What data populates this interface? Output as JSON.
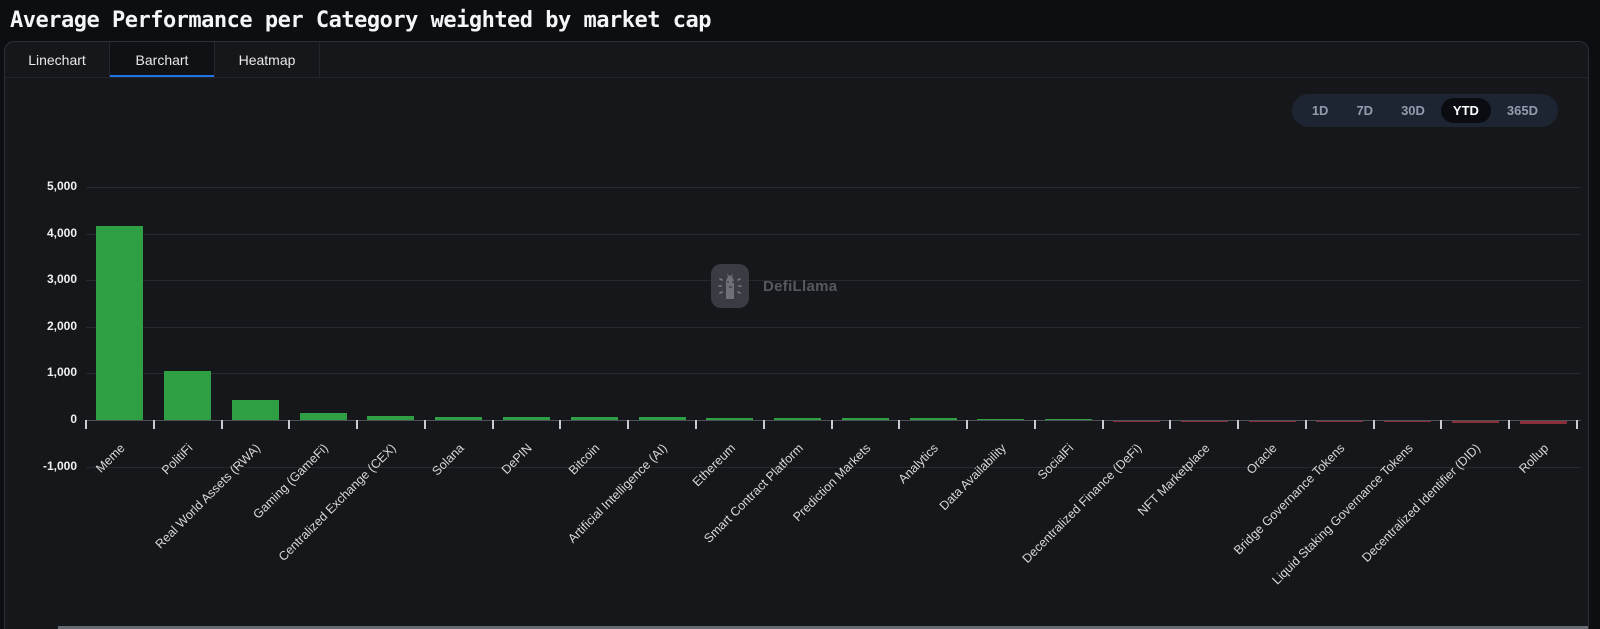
{
  "header": {
    "title": "Average Performance per Category weighted by market cap"
  },
  "tabs": [
    {
      "label": "Linechart",
      "active": false
    },
    {
      "label": "Barchart",
      "active": true
    },
    {
      "label": "Heatmap",
      "active": false
    }
  ],
  "time_ranges": [
    {
      "label": "1D",
      "active": false
    },
    {
      "label": "7D",
      "active": false
    },
    {
      "label": "30D",
      "active": false
    },
    {
      "label": "YTD",
      "active": true
    },
    {
      "label": "365D",
      "active": false
    }
  ],
  "watermark": {
    "label": "DefiLlama",
    "icon": "defillama-llama-icon"
  },
  "colors": {
    "positive": "#2ea043",
    "negative": "#8b2f3a",
    "accent": "#2172e5",
    "background": "#16171a"
  },
  "chart_data": {
    "type": "bar",
    "title": "Average Performance per Category weighted by market cap",
    "categories": [
      "Meme",
      "PolitiFi",
      "Real World Assets (RWA)",
      "Gaming (GameFi)",
      "Centralized Exchange (CEX)",
      "Solana",
      "DePIN",
      "Bitcoin",
      "Artificial Intelligence (AI)",
      "Ethereum",
      "Smart Contract Platform",
      "Prediction Markets",
      "Analytics",
      "Data Availability",
      "SocialFi",
      "Decentralized Finance (DeFi)",
      "NFT Marketplace",
      "Oracle",
      "Bridge Governance Tokens",
      "Liquid Staking Governance Tokens",
      "Decentralized Identifier (DID)",
      "Rollup"
    ],
    "values": [
      4160,
      1050,
      420,
      140,
      85,
      65,
      60,
      55,
      55,
      50,
      50,
      45,
      40,
      25,
      10,
      -5,
      -10,
      -20,
      -25,
      -30,
      -35,
      -55
    ],
    "xlabel": "",
    "ylabel": "",
    "ylim": [
      -1000,
      5000
    ],
    "yticks": [
      5000,
      4000,
      3000,
      2000,
      1000,
      0,
      -1000
    ],
    "grid": true,
    "legend_position": "none",
    "x_label_rotation_deg": -45
  }
}
